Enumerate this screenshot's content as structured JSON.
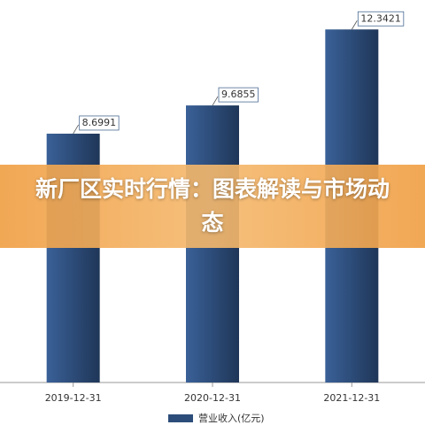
{
  "chart_data": {
    "type": "bar",
    "categories": [
      "2019-12-31",
      "2020-12-31",
      "2021-12-31"
    ],
    "series": [
      {
        "name": "营业收入(亿元)",
        "color": "#2c4d7a",
        "values": [
          8.6991,
          9.6855,
          12.3421
        ]
      }
    ],
    "ylim": [
      0,
      13
    ]
  },
  "banner": {
    "title": "新厂区实时行情：图表解读与市场动态"
  }
}
